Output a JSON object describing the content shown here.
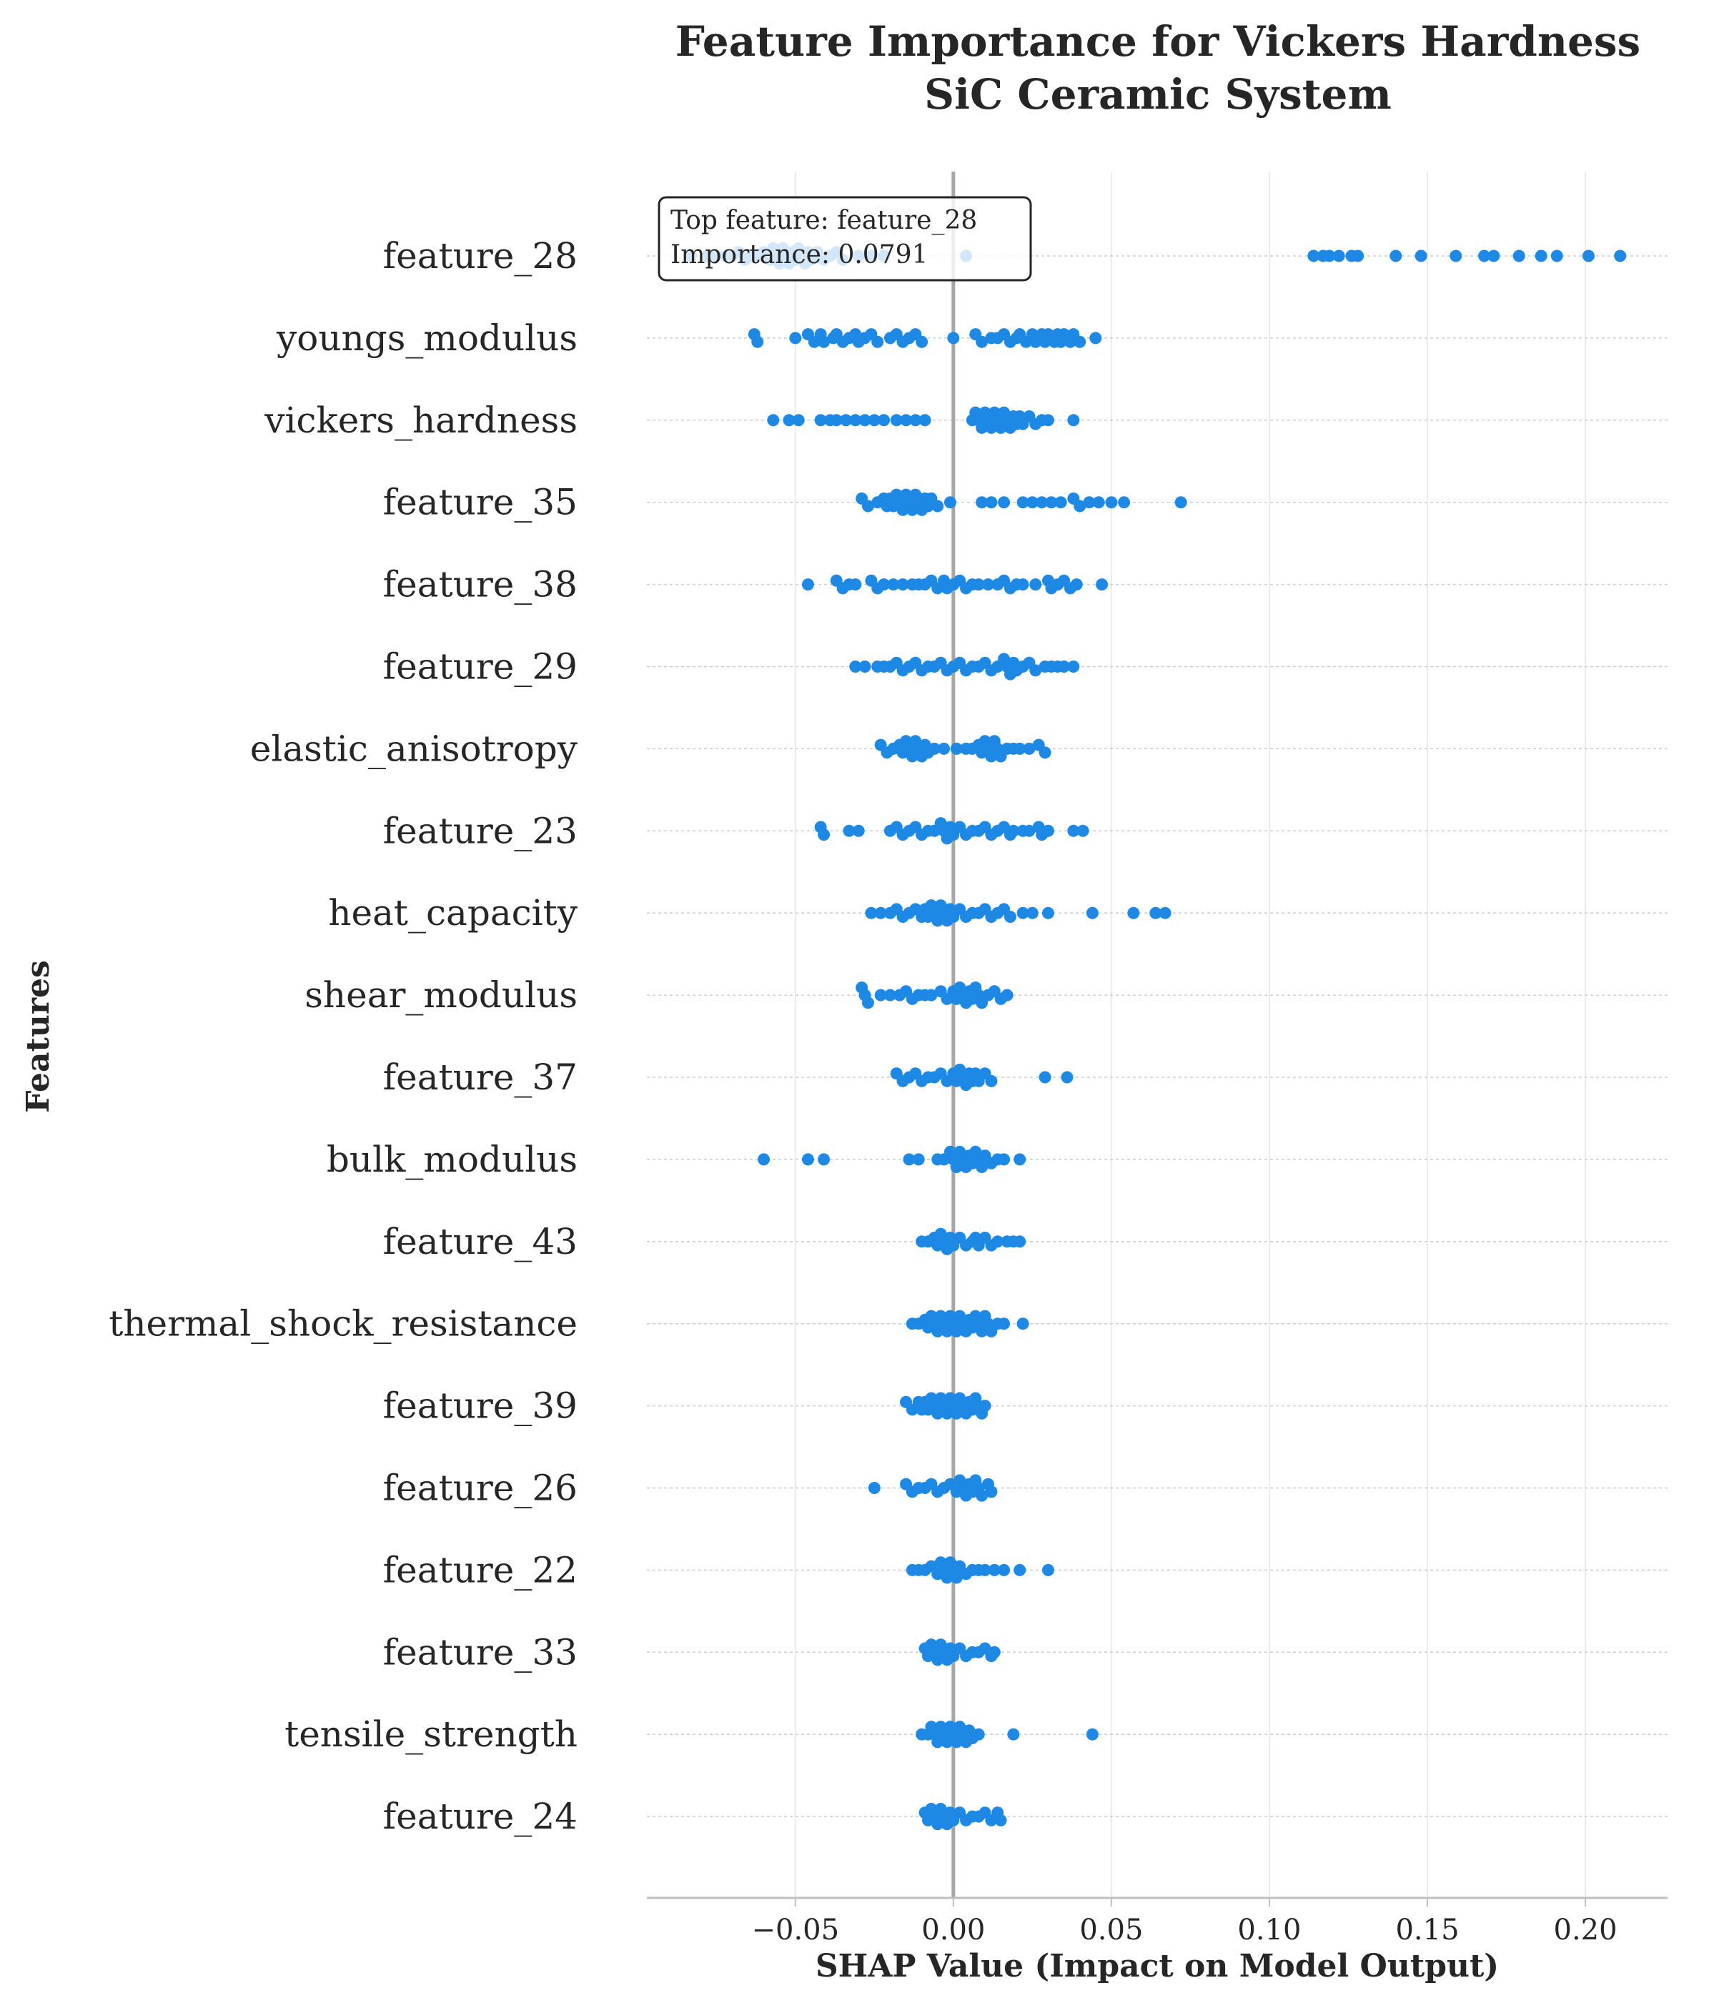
{
  "chart_data": {
    "type": "scatter",
    "subtype": "shap-beeswarm",
    "title": [
      "Feature Importance for Vickers Hardness",
      "SiC Ceramic System"
    ],
    "xlabel": "SHAP Value (Impact on Model Output)",
    "ylabel": "Features",
    "xlim": [
      -0.097,
      0.226
    ],
    "xticks": [
      -0.05,
      0.0,
      0.05,
      0.1,
      0.15,
      0.2
    ],
    "xtick_labels": [
      "−0.05",
      "0.00",
      "0.05",
      "0.10",
      "0.15",
      "0.20"
    ],
    "grid": true,
    "point_color": "#1e88e5",
    "zero_line_color": "#a6a6a6",
    "annotation": {
      "lines": [
        "Top feature: feature_28",
        "Importance: 0.0791"
      ],
      "placement": "top-left"
    },
    "features": [
      {
        "name": "feature_28",
        "values": [
          -0.083,
          -0.078,
          -0.075,
          -0.072,
          -0.07,
          -0.068,
          -0.066,
          -0.064,
          -0.062,
          -0.06,
          -0.058,
          -0.057,
          -0.056,
          -0.055,
          -0.054,
          -0.053,
          -0.052,
          -0.051,
          -0.05,
          -0.049,
          -0.048,
          -0.047,
          -0.046,
          -0.045,
          -0.043,
          -0.041,
          -0.039,
          -0.037,
          -0.035,
          -0.03,
          -0.026,
          -0.022,
          0.004,
          0.114,
          0.117,
          0.119,
          0.122,
          0.126,
          0.128,
          0.14,
          0.148,
          0.159,
          0.168,
          0.171,
          0.179,
          0.186,
          0.191,
          0.201,
          0.211
        ]
      },
      {
        "name": "youngs_modulus",
        "values": [
          -0.063,
          -0.062,
          -0.05,
          -0.046,
          -0.044,
          -0.042,
          -0.041,
          -0.038,
          -0.037,
          -0.035,
          -0.033,
          -0.031,
          -0.03,
          -0.028,
          -0.026,
          -0.024,
          -0.02,
          -0.018,
          -0.016,
          -0.014,
          -0.012,
          -0.01,
          0.0,
          0.007,
          0.009,
          0.012,
          0.014,
          0.016,
          0.018,
          0.02,
          0.021,
          0.023,
          0.025,
          0.026,
          0.028,
          0.029,
          0.03,
          0.032,
          0.033,
          0.034,
          0.035,
          0.037,
          0.038,
          0.04,
          0.045
        ]
      },
      {
        "name": "vickers_hardness",
        "values": [
          -0.057,
          -0.052,
          -0.049,
          -0.042,
          -0.039,
          -0.037,
          -0.034,
          -0.031,
          -0.028,
          -0.025,
          -0.022,
          -0.018,
          -0.015,
          -0.012,
          -0.009,
          0.006,
          0.007,
          0.008,
          0.009,
          0.01,
          0.011,
          0.012,
          0.013,
          0.014,
          0.015,
          0.016,
          0.017,
          0.018,
          0.019,
          0.02,
          0.021,
          0.022,
          0.024,
          0.026,
          0.028,
          0.03,
          0.038
        ]
      },
      {
        "name": "feature_35",
        "values": [
          -0.029,
          -0.027,
          -0.024,
          -0.022,
          -0.021,
          -0.02,
          -0.019,
          -0.018,
          -0.017,
          -0.016,
          -0.015,
          -0.014,
          -0.013,
          -0.012,
          -0.011,
          -0.01,
          -0.009,
          -0.008,
          -0.007,
          -0.005,
          -0.001,
          0.009,
          0.012,
          0.016,
          0.022,
          0.025,
          0.028,
          0.031,
          0.034,
          0.038,
          0.04,
          0.043,
          0.046,
          0.05,
          0.054,
          0.072
        ]
      },
      {
        "name": "feature_38",
        "values": [
          -0.046,
          -0.037,
          -0.035,
          -0.033,
          -0.031,
          -0.026,
          -0.024,
          -0.022,
          -0.019,
          -0.016,
          -0.013,
          -0.011,
          -0.009,
          -0.007,
          -0.005,
          -0.003,
          -0.002,
          0.0,
          0.002,
          0.004,
          0.006,
          0.008,
          0.011,
          0.014,
          0.016,
          0.018,
          0.02,
          0.022,
          0.026,
          0.03,
          0.031,
          0.033,
          0.035,
          0.037,
          0.039,
          0.047
        ]
      },
      {
        "name": "feature_29",
        "values": [
          -0.031,
          -0.028,
          -0.024,
          -0.022,
          -0.02,
          -0.018,
          -0.016,
          -0.014,
          -0.012,
          -0.01,
          -0.008,
          -0.006,
          -0.004,
          -0.002,
          0.0,
          0.002,
          0.004,
          0.006,
          0.008,
          0.01,
          0.012,
          0.014,
          0.016,
          0.017,
          0.018,
          0.019,
          0.02,
          0.022,
          0.024,
          0.026,
          0.029,
          0.031,
          0.033,
          0.035,
          0.038
        ]
      },
      {
        "name": "elastic_anisotropy",
        "values": [
          -0.023,
          -0.021,
          -0.019,
          -0.017,
          -0.016,
          -0.015,
          -0.014,
          -0.013,
          -0.012,
          -0.011,
          -0.01,
          -0.009,
          -0.008,
          -0.006,
          -0.003,
          0.001,
          0.004,
          0.006,
          0.008,
          0.009,
          0.01,
          0.011,
          0.012,
          0.013,
          0.014,
          0.015,
          0.017,
          0.019,
          0.021,
          0.024,
          0.027,
          0.029
        ]
      },
      {
        "name": "feature_23",
        "values": [
          -0.042,
          -0.041,
          -0.033,
          -0.03,
          -0.02,
          -0.018,
          -0.016,
          -0.014,
          -0.012,
          -0.01,
          -0.008,
          -0.006,
          -0.004,
          -0.003,
          -0.002,
          -0.001,
          0.0,
          0.002,
          0.004,
          0.006,
          0.008,
          0.01,
          0.012,
          0.014,
          0.016,
          0.018,
          0.019,
          0.022,
          0.024,
          0.027,
          0.028,
          0.03,
          0.038,
          0.041
        ]
      },
      {
        "name": "heat_capacity",
        "values": [
          -0.026,
          -0.023,
          -0.02,
          -0.018,
          -0.016,
          -0.014,
          -0.012,
          -0.01,
          -0.009,
          -0.008,
          -0.007,
          -0.006,
          -0.005,
          -0.004,
          -0.003,
          -0.002,
          -0.001,
          0.0,
          0.002,
          0.004,
          0.006,
          0.008,
          0.01,
          0.012,
          0.014,
          0.016,
          0.018,
          0.022,
          0.025,
          0.03,
          0.044,
          0.057,
          0.064,
          0.067
        ]
      },
      {
        "name": "shear_modulus",
        "values": [
          -0.029,
          -0.028,
          -0.027,
          -0.023,
          -0.02,
          -0.017,
          -0.015,
          -0.013,
          -0.011,
          -0.009,
          -0.007,
          -0.004,
          -0.002,
          0.0,
          0.001,
          0.002,
          0.003,
          0.004,
          0.005,
          0.006,
          0.007,
          0.008,
          0.009,
          0.011,
          0.013,
          0.015,
          0.017
        ]
      },
      {
        "name": "feature_37",
        "values": [
          -0.018,
          -0.016,
          -0.014,
          -0.012,
          -0.01,
          -0.008,
          -0.006,
          -0.004,
          -0.002,
          0.0,
          0.001,
          0.002,
          0.003,
          0.004,
          0.005,
          0.006,
          0.007,
          0.008,
          0.01,
          0.012,
          0.029,
          0.036
        ]
      },
      {
        "name": "bulk_modulus",
        "values": [
          -0.06,
          -0.046,
          -0.041,
          -0.014,
          -0.011,
          -0.005,
          -0.003,
          -0.001,
          0.0,
          0.001,
          0.002,
          0.003,
          0.004,
          0.005,
          0.006,
          0.007,
          0.008,
          0.009,
          0.01,
          0.012,
          0.014,
          0.016,
          0.021
        ]
      },
      {
        "name": "feature_43",
        "values": [
          -0.01,
          -0.008,
          -0.006,
          -0.005,
          -0.004,
          -0.003,
          -0.002,
          -0.001,
          0.0,
          0.002,
          0.004,
          0.006,
          0.007,
          0.008,
          0.01,
          0.012,
          0.014,
          0.017,
          0.019,
          0.021
        ]
      },
      {
        "name": "thermal_shock_resistance",
        "values": [
          -0.013,
          -0.011,
          -0.009,
          -0.008,
          -0.007,
          -0.006,
          -0.005,
          -0.004,
          -0.003,
          -0.002,
          -0.001,
          0.0,
          0.001,
          0.002,
          0.003,
          0.004,
          0.005,
          0.006,
          0.007,
          0.008,
          0.009,
          0.01,
          0.011,
          0.012,
          0.014,
          0.016,
          0.022
        ]
      },
      {
        "name": "feature_39",
        "values": [
          -0.015,
          -0.013,
          -0.011,
          -0.01,
          -0.009,
          -0.008,
          -0.007,
          -0.006,
          -0.005,
          -0.004,
          -0.003,
          -0.002,
          -0.001,
          0.0,
          0.001,
          0.002,
          0.003,
          0.004,
          0.005,
          0.006,
          0.007,
          0.008,
          0.009,
          0.01
        ]
      },
      {
        "name": "feature_26",
        "values": [
          -0.025,
          -0.015,
          -0.013,
          -0.011,
          -0.009,
          -0.007,
          -0.005,
          -0.003,
          -0.001,
          0.001,
          0.002,
          0.003,
          0.004,
          0.005,
          0.006,
          0.007,
          0.008,
          0.009,
          0.011,
          0.012
        ]
      },
      {
        "name": "feature_22",
        "values": [
          -0.013,
          -0.011,
          -0.009,
          -0.007,
          -0.005,
          -0.004,
          -0.003,
          -0.002,
          -0.001,
          0.0,
          0.001,
          0.002,
          0.004,
          0.006,
          0.008,
          0.01,
          0.013,
          0.016,
          0.021,
          0.03
        ]
      },
      {
        "name": "feature_33",
        "values": [
          -0.009,
          -0.008,
          -0.007,
          -0.006,
          -0.005,
          -0.004,
          -0.003,
          -0.002,
          -0.001,
          0.0,
          0.002,
          0.004,
          0.006,
          0.008,
          0.01,
          0.012,
          0.013
        ]
      },
      {
        "name": "tensile_strength",
        "values": [
          -0.01,
          -0.008,
          -0.007,
          -0.006,
          -0.005,
          -0.004,
          -0.003,
          -0.002,
          -0.001,
          0.0,
          0.001,
          0.002,
          0.003,
          0.004,
          0.005,
          0.006,
          0.008,
          0.019,
          0.044
        ]
      },
      {
        "name": "feature_24",
        "values": [
          -0.009,
          -0.008,
          -0.007,
          -0.006,
          -0.005,
          -0.004,
          -0.003,
          -0.002,
          -0.001,
          0.0,
          0.002,
          0.004,
          0.006,
          0.008,
          0.01,
          0.012,
          0.014,
          0.015
        ]
      }
    ]
  }
}
